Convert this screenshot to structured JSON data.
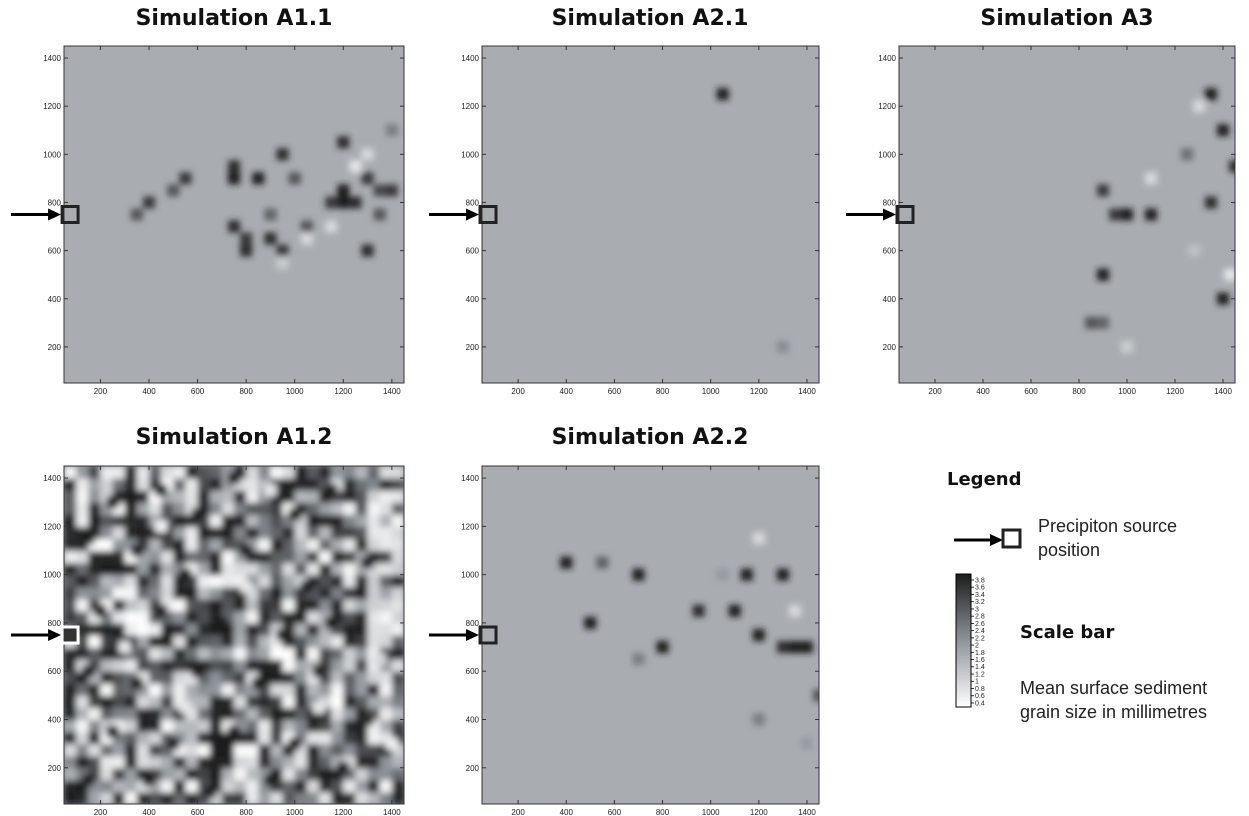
{
  "chart_data": [
    {
      "type": "heatmap",
      "title": "Simulation A1.1",
      "xlim": [
        50,
        1450
      ],
      "ylim": [
        50,
        1450
      ],
      "xticks": [
        200,
        400,
        600,
        800,
        1000,
        1200,
        1400
      ],
      "yticks": [
        200,
        400,
        600,
        800,
        1000,
        1200,
        1400
      ],
      "background_value": 1.7,
      "precipiton_source": {
        "x": 75,
        "y": 750
      },
      "cells": [
        {
          "x": 350,
          "y": 750,
          "v": 3.0
        },
        {
          "x": 400,
          "y": 800,
          "v": 3.4
        },
        {
          "x": 500,
          "y": 850,
          "v": 3.0
        },
        {
          "x": 550,
          "y": 900,
          "v": 3.4
        },
        {
          "x": 750,
          "y": 900,
          "v": 3.8
        },
        {
          "x": 750,
          "y": 950,
          "v": 3.6
        },
        {
          "x": 850,
          "y": 900,
          "v": 3.8
        },
        {
          "x": 950,
          "y": 1000,
          "v": 3.6
        },
        {
          "x": 1000,
          "y": 900,
          "v": 3.0
        },
        {
          "x": 750,
          "y": 700,
          "v": 3.6
        },
        {
          "x": 800,
          "y": 650,
          "v": 3.4
        },
        {
          "x": 800,
          "y": 600,
          "v": 3.6
        },
        {
          "x": 900,
          "y": 650,
          "v": 3.6
        },
        {
          "x": 950,
          "y": 600,
          "v": 3.4
        },
        {
          "x": 900,
          "y": 750,
          "v": 2.8
        },
        {
          "x": 1050,
          "y": 700,
          "v": 3.0
        },
        {
          "x": 1200,
          "y": 800,
          "v": 3.8
        },
        {
          "x": 1200,
          "y": 850,
          "v": 3.8
        },
        {
          "x": 1250,
          "y": 800,
          "v": 3.6
        },
        {
          "x": 1150,
          "y": 800,
          "v": 3.4
        },
        {
          "x": 1300,
          "y": 900,
          "v": 3.4
        },
        {
          "x": 1350,
          "y": 850,
          "v": 3.2
        },
        {
          "x": 1350,
          "y": 750,
          "v": 3.0
        },
        {
          "x": 1400,
          "y": 850,
          "v": 3.4
        },
        {
          "x": 1200,
          "y": 1050,
          "v": 3.6
        },
        {
          "x": 1300,
          "y": 600,
          "v": 3.6
        },
        {
          "x": 1250,
          "y": 950,
          "v": 0.8
        },
        {
          "x": 1300,
          "y": 1000,
          "v": 1.0
        },
        {
          "x": 1400,
          "y": 1100,
          "v": 2.4
        },
        {
          "x": 1050,
          "y": 650,
          "v": 1.0
        },
        {
          "x": 950,
          "y": 550,
          "v": 1.2
        },
        {
          "x": 1150,
          "y": 700,
          "v": 1.0
        }
      ]
    },
    {
      "type": "heatmap",
      "title": "Simulation A2.1",
      "xlim": [
        50,
        1450
      ],
      "ylim": [
        50,
        1450
      ],
      "xticks": [
        200,
        400,
        600,
        800,
        1000,
        1200,
        1400
      ],
      "yticks": [
        200,
        400,
        600,
        800,
        1000,
        1200,
        1400
      ],
      "background_value": 1.7,
      "precipiton_source": {
        "x": 75,
        "y": 750
      },
      "cells": [
        {
          "x": 1050,
          "y": 1250,
          "v": 3.8
        },
        {
          "x": 1300,
          "y": 200,
          "v": 2.2
        }
      ]
    },
    {
      "type": "heatmap",
      "title": "Simulation A3",
      "xlim": [
        50,
        1450
      ],
      "ylim": [
        50,
        1450
      ],
      "xticks": [
        200,
        400,
        600,
        800,
        1000,
        1200,
        1400
      ],
      "yticks": [
        200,
        400,
        600,
        800,
        1000,
        1200,
        1400
      ],
      "background_value": 1.7,
      "precipiton_source": {
        "x": 75,
        "y": 750
      },
      "cells": [
        {
          "x": 1350,
          "y": 1250,
          "v": 3.8
        },
        {
          "x": 1400,
          "y": 1100,
          "v": 3.8
        },
        {
          "x": 1450,
          "y": 950,
          "v": 3.6
        },
        {
          "x": 900,
          "y": 850,
          "v": 3.4
        },
        {
          "x": 950,
          "y": 750,
          "v": 3.4
        },
        {
          "x": 1000,
          "y": 750,
          "v": 3.8
        },
        {
          "x": 1100,
          "y": 750,
          "v": 3.8
        },
        {
          "x": 1350,
          "y": 800,
          "v": 3.6
        },
        {
          "x": 900,
          "y": 500,
          "v": 3.8
        },
        {
          "x": 1400,
          "y": 400,
          "v": 3.8
        },
        {
          "x": 850,
          "y": 300,
          "v": 3.0
        },
        {
          "x": 900,
          "y": 300,
          "v": 2.8
        },
        {
          "x": 1250,
          "y": 1000,
          "v": 2.6
        },
        {
          "x": 1100,
          "y": 900,
          "v": 1.0
        },
        {
          "x": 1300,
          "y": 1200,
          "v": 1.0
        },
        {
          "x": 1000,
          "y": 200,
          "v": 1.2
        },
        {
          "x": 1280,
          "y": 600,
          "v": 1.4
        },
        {
          "x": 1430,
          "y": 500,
          "v": 0.8
        }
      ]
    },
    {
      "type": "heatmap",
      "title": "Simulation A1.2",
      "xlim": [
        50,
        1450
      ],
      "ylim": [
        50,
        1450
      ],
      "xticks": [
        200,
        400,
        600,
        800,
        1000,
        1200,
        1400
      ],
      "yticks": [
        200,
        400,
        600,
        800,
        1000,
        1200,
        1400
      ],
      "background_value": 2.2,
      "texture": "dense",
      "precipiton_source": {
        "x": 75,
        "y": 750
      },
      "cells": [
        {
          "x": 150,
          "y": 1150,
          "v": 3.8
        },
        {
          "x": 250,
          "y": 1300,
          "v": 3.8
        },
        {
          "x": 450,
          "y": 1350,
          "v": 3.8
        },
        {
          "x": 600,
          "y": 1250,
          "v": 3.8
        },
        {
          "x": 750,
          "y": 1400,
          "v": 3.8
        },
        {
          "x": 1000,
          "y": 1250,
          "v": 3.8
        },
        {
          "x": 1150,
          "y": 1350,
          "v": 3.8
        },
        {
          "x": 350,
          "y": 1100,
          "v": 3.8
        },
        {
          "x": 550,
          "y": 1000,
          "v": 3.8
        },
        {
          "x": 800,
          "y": 1100,
          "v": 3.8
        },
        {
          "x": 1050,
          "y": 950,
          "v": 3.8
        },
        {
          "x": 1300,
          "y": 1050,
          "v": 3.8
        },
        {
          "x": 200,
          "y": 850,
          "v": 3.8
        },
        {
          "x": 450,
          "y": 850,
          "v": 3.8
        },
        {
          "x": 700,
          "y": 800,
          "v": 3.8
        },
        {
          "x": 950,
          "y": 750,
          "v": 3.8
        },
        {
          "x": 1150,
          "y": 800,
          "v": 3.8
        },
        {
          "x": 150,
          "y": 600,
          "v": 3.8
        },
        {
          "x": 350,
          "y": 550,
          "v": 3.8
        },
        {
          "x": 600,
          "y": 600,
          "v": 3.8
        },
        {
          "x": 850,
          "y": 550,
          "v": 3.8
        },
        {
          "x": 1100,
          "y": 600,
          "v": 3.8
        },
        {
          "x": 250,
          "y": 350,
          "v": 3.8
        },
        {
          "x": 500,
          "y": 300,
          "v": 3.8
        },
        {
          "x": 750,
          "y": 350,
          "v": 3.8
        },
        {
          "x": 1000,
          "y": 300,
          "v": 3.8
        },
        {
          "x": 150,
          "y": 150,
          "v": 3.8
        },
        {
          "x": 400,
          "y": 150,
          "v": 3.8
        },
        {
          "x": 650,
          "y": 100,
          "v": 3.8
        },
        {
          "x": 900,
          "y": 150,
          "v": 3.8
        },
        {
          "x": 1200,
          "y": 200,
          "v": 3.8
        },
        {
          "x": 1300,
          "y": 400,
          "v": 3.6
        },
        {
          "x": 1350,
          "y": 650,
          "v": 1.0
        },
        {
          "x": 1400,
          "y": 300,
          "v": 0.6
        },
        {
          "x": 300,
          "y": 700,
          "v": 0.8
        },
        {
          "x": 550,
          "y": 450,
          "v": 0.8
        },
        {
          "x": 800,
          "y": 950,
          "v": 0.8
        },
        {
          "x": 1100,
          "y": 450,
          "v": 0.8
        },
        {
          "x": 450,
          "y": 1200,
          "v": 0.6
        },
        {
          "x": 900,
          "y": 1350,
          "v": 0.8
        }
      ]
    },
    {
      "type": "heatmap",
      "title": "Simulation A2.2",
      "xlim": [
        50,
        1450
      ],
      "ylim": [
        50,
        1450
      ],
      "xticks": [
        200,
        400,
        600,
        800,
        1000,
        1200,
        1400
      ],
      "yticks": [
        200,
        400,
        600,
        800,
        1000,
        1200,
        1400
      ],
      "background_value": 1.7,
      "precipiton_source": {
        "x": 75,
        "y": 750
      },
      "cells": [
        {
          "x": 400,
          "y": 1050,
          "v": 3.8
        },
        {
          "x": 550,
          "y": 1050,
          "v": 2.8
        },
        {
          "x": 500,
          "y": 800,
          "v": 3.8
        },
        {
          "x": 700,
          "y": 1000,
          "v": 3.8
        },
        {
          "x": 700,
          "y": 650,
          "v": 2.4
        },
        {
          "x": 800,
          "y": 700,
          "v": 3.8
        },
        {
          "x": 950,
          "y": 850,
          "v": 3.6
        },
        {
          "x": 1050,
          "y": 1000,
          "v": 2.0
        },
        {
          "x": 1100,
          "y": 850,
          "v": 3.8
        },
        {
          "x": 1150,
          "y": 1000,
          "v": 3.8
        },
        {
          "x": 1200,
          "y": 750,
          "v": 3.8
        },
        {
          "x": 1300,
          "y": 1000,
          "v": 3.8
        },
        {
          "x": 1350,
          "y": 700,
          "v": 3.8
        },
        {
          "x": 1400,
          "y": 700,
          "v": 3.8
        },
        {
          "x": 1300,
          "y": 700,
          "v": 3.6
        },
        {
          "x": 1200,
          "y": 400,
          "v": 2.4
        },
        {
          "x": 1400,
          "y": 300,
          "v": 2.0
        },
        {
          "x": 1450,
          "y": 500,
          "v": 3.0
        },
        {
          "x": 1200,
          "y": 1150,
          "v": 1.0
        },
        {
          "x": 1350,
          "y": 850,
          "v": 1.0
        }
      ]
    }
  ],
  "legend": {
    "title": "Legend",
    "source_label_line1": "Precipiton source",
    "source_label_line2": "position",
    "scale_title": "Scale bar",
    "scale_desc_line1": "Mean surface sediment",
    "scale_desc_line2": "grain size in millimetres",
    "scale_ticks": [
      "3.8",
      "3.6",
      "3.4",
      "3.2",
      "3",
      "2.8",
      "2.6",
      "2.4",
      "2.2",
      "2",
      "1.8",
      "1.6",
      "1.4",
      "1.2",
      "1",
      "0.8",
      "0.6",
      "0.4"
    ],
    "scale_min": 0.4,
    "scale_max": 3.8,
    "color_dark": "#1c1c1c",
    "color_light": "#ffffff"
  }
}
